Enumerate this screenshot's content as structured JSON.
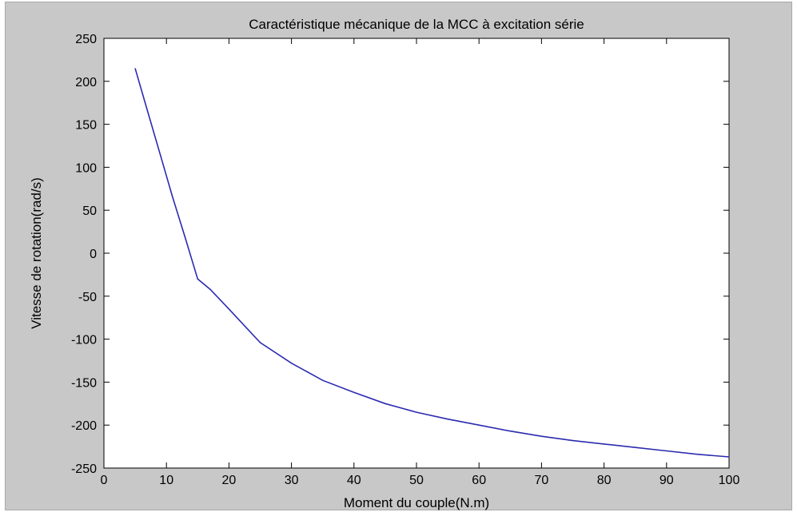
{
  "chart_data": {
    "type": "line",
    "title": "Caractéristique mécanique de la MCC à excitation série",
    "xlabel": "Moment du couple(N.m)",
    "ylabel": "Vitesse de rotation(rad/s)",
    "xlim": [
      0,
      100
    ],
    "ylim": [
      -250,
      250
    ],
    "xticks": [
      0,
      10,
      20,
      30,
      40,
      50,
      60,
      70,
      80,
      90,
      100
    ],
    "yticks": [
      250,
      200,
      150,
      100,
      50,
      0,
      -50,
      -100,
      -150,
      -200,
      -250
    ],
    "grid": false,
    "legend": "none",
    "series": [
      {
        "color": "#2b2bb0",
        "x": [
          5,
          7,
          9,
          11,
          13,
          15,
          17,
          20,
          25,
          30,
          35,
          40,
          45,
          50,
          55,
          60,
          65,
          70,
          75,
          80,
          85,
          90,
          95,
          100
        ],
        "y": [
          215,
          165,
          115,
          65,
          18,
          -30,
          -42,
          -65,
          -104,
          -128,
          -148,
          -162,
          -175,
          -185,
          -193,
          -200,
          -207,
          -213,
          -218,
          -222,
          -226,
          -230,
          -234,
          -237
        ]
      }
    ]
  }
}
